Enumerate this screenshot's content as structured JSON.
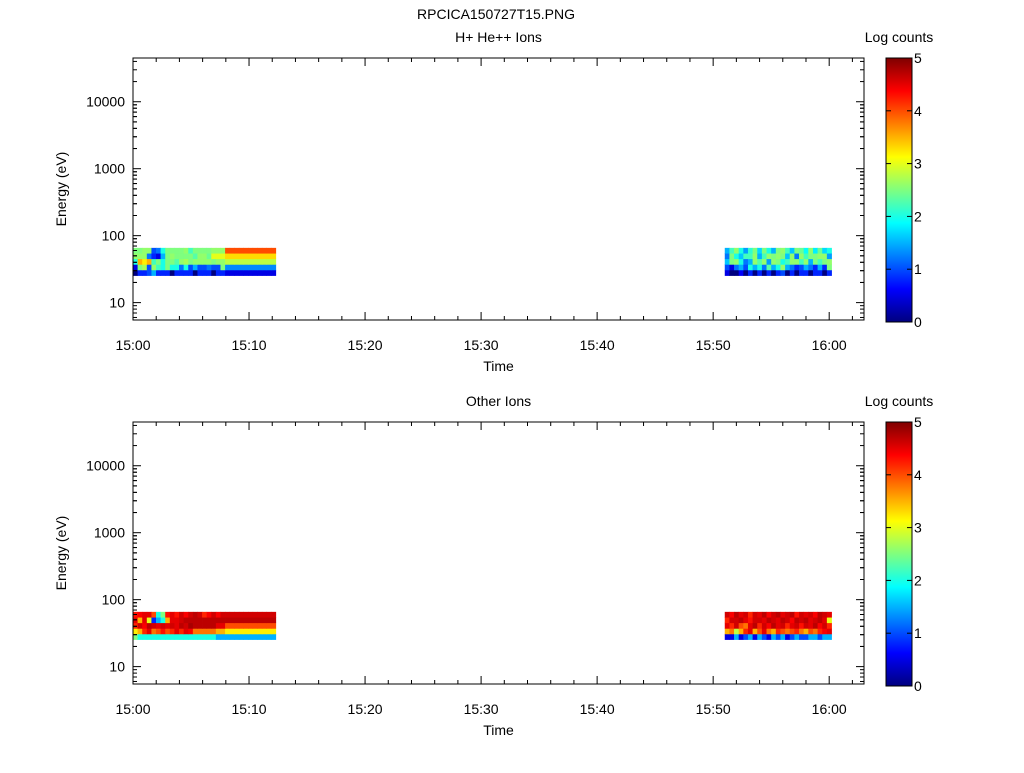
{
  "figure": {
    "title": "RPCICA150727T15.PNG"
  },
  "colormap": [
    "#00007f",
    "#0000ff",
    "#007fff",
    "#00ffff",
    "#7fff7f",
    "#ffff00",
    "#ff7f00",
    "#ff0000",
    "#7f0000"
  ],
  "chart_data": [
    {
      "type": "heatmap",
      "title": "H+ He++ Ions",
      "xlabel": "Time",
      "ylabel": "Energy (eV)",
      "x_ticks": [
        "15:00",
        "15:10",
        "15:20",
        "15:30",
        "15:40",
        "15:50",
        "16:00"
      ],
      "xlim_minutes": [
        0,
        63
      ],
      "ylim": [
        5.5,
        45000
      ],
      "y_scale": "log",
      "y_ticks": [
        "10",
        "100",
        "1000",
        "10000"
      ],
      "colorbar": {
        "label": "Log counts",
        "range": [
          0,
          5
        ],
        "ticks": [
          "0",
          "1",
          "2",
          "3",
          "4",
          "5"
        ]
      },
      "energy_bins": [
        28,
        34,
        41,
        50,
        60
      ],
      "segments": [
        {
          "start_minute": 0,
          "end_minute": 12.3,
          "rows": [
            [
              0,
              0.8,
              0.8,
              1,
              1.5,
              0.8,
              0.8,
              0.8,
              0,
              0.8,
              0.8,
              0.8,
              0.8,
              0,
              0.8,
              0.8,
              0.8,
              0,
              0.8,
              0.8,
              0.5,
              0.5,
              0.5,
              0.5,
              0.5,
              0.5,
              0.5,
              0.5,
              0.5,
              0.5,
              0.5
            ],
            [
              0.5,
              2.5,
              2.7,
              1,
              2.6,
              2.2,
              2,
              2.5,
              2,
              2,
              1.2,
              2,
              1,
              1.5,
              1,
              1,
              1.2,
              1,
              1,
              2.5,
              1.3,
              1.3,
              1.3,
              1.3,
              1.3,
              1.3,
              1.3,
              1.3,
              1.3,
              1.3,
              1.3
            ],
            [
              2,
              3.5,
              3.2,
              3.5,
              2.2,
              2.5,
              2,
              2.5,
              2.5,
              2.3,
              2.6,
              2.7,
              2.5,
              2.6,
              2.6,
              2.6,
              2.6,
              2.5,
              2.6,
              2.6,
              2.8,
              2.8,
              2.8,
              2.8,
              2.8,
              2.8,
              2.8,
              2.8,
              2.8,
              2.8,
              2.8
            ],
            [
              2.6,
              2.6,
              2.6,
              1.2,
              0.8,
              0.5,
              1.5,
              2.5,
              2.6,
              2.5,
              2.5,
              2.5,
              2.5,
              2.3,
              2.6,
              2.6,
              2.4,
              3,
              3,
              3,
              3.3,
              3.3,
              3.3,
              3.3,
              3.3,
              3.3,
              3.3,
              3.3,
              3.3,
              3.3,
              3.3
            ],
            [
              2.5,
              2.5,
              2.6,
              2.6,
              1,
              1.2,
              2,
              2.5,
              2.5,
              2.5,
              2.5,
              2.6,
              2.2,
              2.5,
              2.5,
              2.5,
              2.5,
              2.6,
              2.6,
              2.6,
              4,
              4,
              4,
              4,
              4,
              4,
              4,
              4,
              4,
              4,
              4
            ]
          ]
        },
        {
          "start_minute": 51,
          "end_minute": 60.2,
          "rows": [
            [
              0.5,
              0,
              0,
              0.6,
              0,
              0.8,
              0,
              0.8,
              0,
              0.8,
              0,
              0.8,
              1,
              0,
              0.8,
              0,
              0.8,
              0.8,
              0,
              0.8,
              0.8,
              0,
              0.8
            ],
            [
              1,
              0.5,
              1.2,
              1.5,
              1,
              2,
              1.5,
              2,
              1.2,
              2.3,
              1.5,
              2,
              2.6,
              1.5,
              1.2,
              0.8,
              1,
              1.5,
              1.2,
              0.8,
              1.5,
              0.8,
              2.5
            ],
            [
              1.6,
              2.5,
              2.6,
              2,
              1.2,
              1.5,
              2.6,
              2.3,
              2.6,
              1.4,
              2.6,
              2.5,
              2,
              2.2,
              2.6,
              2.6,
              2.2,
              2.6,
              1.5,
              2.5,
              2.2,
              2.5,
              2.6
            ],
            [
              1.2,
              2.5,
              2,
              1.6,
              2.2,
              2.2,
              2.6,
              1.5,
              2.2,
              2.6,
              2.5,
              2.6,
              2.5,
              1.6,
              2.6,
              1.2,
              2.6,
              2.2,
              2.5,
              2.5,
              2.6,
              2.6,
              1.4
            ],
            [
              1.5,
              2.2,
              2.6,
              2,
              1.4,
              2.1,
              2.5,
              1.7,
              2.5,
              2,
              1.5,
              2.5,
              2.6,
              2.2,
              1.6,
              2.5,
              2.4,
              1.9,
              2.6,
              1.8,
              2.4,
              1.7,
              2
            ]
          ]
        }
      ]
    },
    {
      "type": "heatmap",
      "title": "Other Ions",
      "xlabel": "Time",
      "ylabel": "Energy (eV)",
      "x_ticks": [
        "15:00",
        "15:10",
        "15:20",
        "15:30",
        "15:40",
        "15:50",
        "16:00"
      ],
      "xlim_minutes": [
        0,
        63
      ],
      "ylim": [
        5.5,
        45000
      ],
      "y_scale": "log",
      "y_ticks": [
        "10",
        "100",
        "1000",
        "10000"
      ],
      "colorbar": {
        "label": "Log counts",
        "range": [
          0,
          5
        ],
        "ticks": [
          "0",
          "1",
          "2",
          "3",
          "4",
          "5"
        ]
      },
      "energy_bins": [
        28,
        34,
        41,
        50,
        60
      ],
      "segments": [
        {
          "start_minute": 0,
          "end_minute": 12.3,
          "rows": [
            [
              2.5,
              2,
              2,
              2,
              2,
              2,
              2,
              2,
              2,
              2,
              2,
              2,
              2,
              2,
              2,
              2,
              2,
              2,
              1.5,
              1.5,
              1.5,
              1.5,
              1.5,
              1.5,
              1.5,
              1.5,
              1.5,
              1.5,
              1.5,
              1.5,
              1.5
            ],
            [
              3.2,
              3.5,
              4.2,
              4.5,
              3.8,
              4,
              4.3,
              4,
              4.2,
              4.5,
              4.2,
              4.5,
              4.4,
              3.8,
              3.8,
              3.8,
              3.8,
              3.8,
              3.5,
              3.5,
              3.2,
              3.2,
              3.2,
              3.2,
              3.2,
              3.2,
              3.2,
              3.2,
              3.2,
              3.2,
              3.2
            ],
            [
              4.2,
              4.6,
              4.4,
              4.7,
              4.6,
              4.5,
              4.6,
              4.5,
              4.6,
              4.5,
              4.7,
              4.6,
              4.8,
              4.7,
              4.7,
              4.7,
              4.7,
              4.7,
              4.5,
              4.5,
              4,
              4,
              4,
              4,
              4,
              4,
              4,
              4,
              4,
              4,
              4
            ],
            [
              4.5,
              3.5,
              4.5,
              3,
              0.8,
              1.5,
              2,
              3.5,
              4.5,
              4.5,
              4.6,
              4.7,
              4.7,
              4.7,
              4.7,
              4.7,
              4.7,
              4.7,
              4.7,
              4.7,
              4.7,
              4.7,
              4.7,
              4.7,
              4.7,
              4.7,
              4.7,
              4.7,
              4.7,
              4.7,
              4.7
            ],
            [
              4.3,
              4.4,
              4.5,
              4.5,
              4,
              2,
              2.5,
              4.3,
              4.5,
              4.3,
              4.6,
              4.4,
              4.6,
              4.7,
              4.6,
              4.2,
              4.4,
              4.6,
              4.4,
              4.6,
              4.6,
              4.6,
              4.6,
              4.6,
              4.6,
              4.6,
              4.6,
              4.6,
              4.6,
              4.6,
              4.6
            ]
          ]
        },
        {
          "start_minute": 51,
          "end_minute": 60.2,
          "rows": [
            [
              0.5,
              0.5,
              1.5,
              0.5,
              1,
              1.5,
              0.5,
              1.5,
              1,
              0.5,
              1.5,
              1,
              1.5,
              0.5,
              1,
              1.5,
              1,
              1,
              1.5,
              1.5,
              1,
              1.5,
              1.5
            ],
            [
              3.5,
              3.8,
              2.8,
              3.5,
              4.2,
              4.5,
              3.5,
              4,
              4.5,
              3.8,
              3.5,
              4.2,
              4,
              3.8,
              4,
              4.2,
              3.8,
              3.5,
              4,
              3.8,
              4.2,
              4.4,
              4.5
            ],
            [
              4.5,
              4.2,
              4.6,
              4,
              3.8,
              4.5,
              4.7,
              4.2,
              4.6,
              4.4,
              4.7,
              4.5,
              4.6,
              4.2,
              4.5,
              4.6,
              4.3,
              4.6,
              4.5,
              4.7,
              4.4,
              4.6,
              4.2
            ],
            [
              4.2,
              4.6,
              4.6,
              4.7,
              4.5,
              4.3,
              4.6,
              4.6,
              4.5,
              4.7,
              4.6,
              4.5,
              4.7,
              4.6,
              4.4,
              4.7,
              4.6,
              4.7,
              4.5,
              4.6,
              4.7,
              4.5,
              3
            ],
            [
              4.6,
              4.4,
              4.7,
              4.5,
              4.6,
              4.2,
              4.6,
              4.5,
              4.7,
              4.4,
              4.6,
              4.7,
              4.5,
              4.6,
              4.7,
              4.3,
              4.6,
              4.5,
              4.6,
              4.4,
              4.7,
              4.6,
              4.5
            ]
          ]
        }
      ]
    }
  ]
}
